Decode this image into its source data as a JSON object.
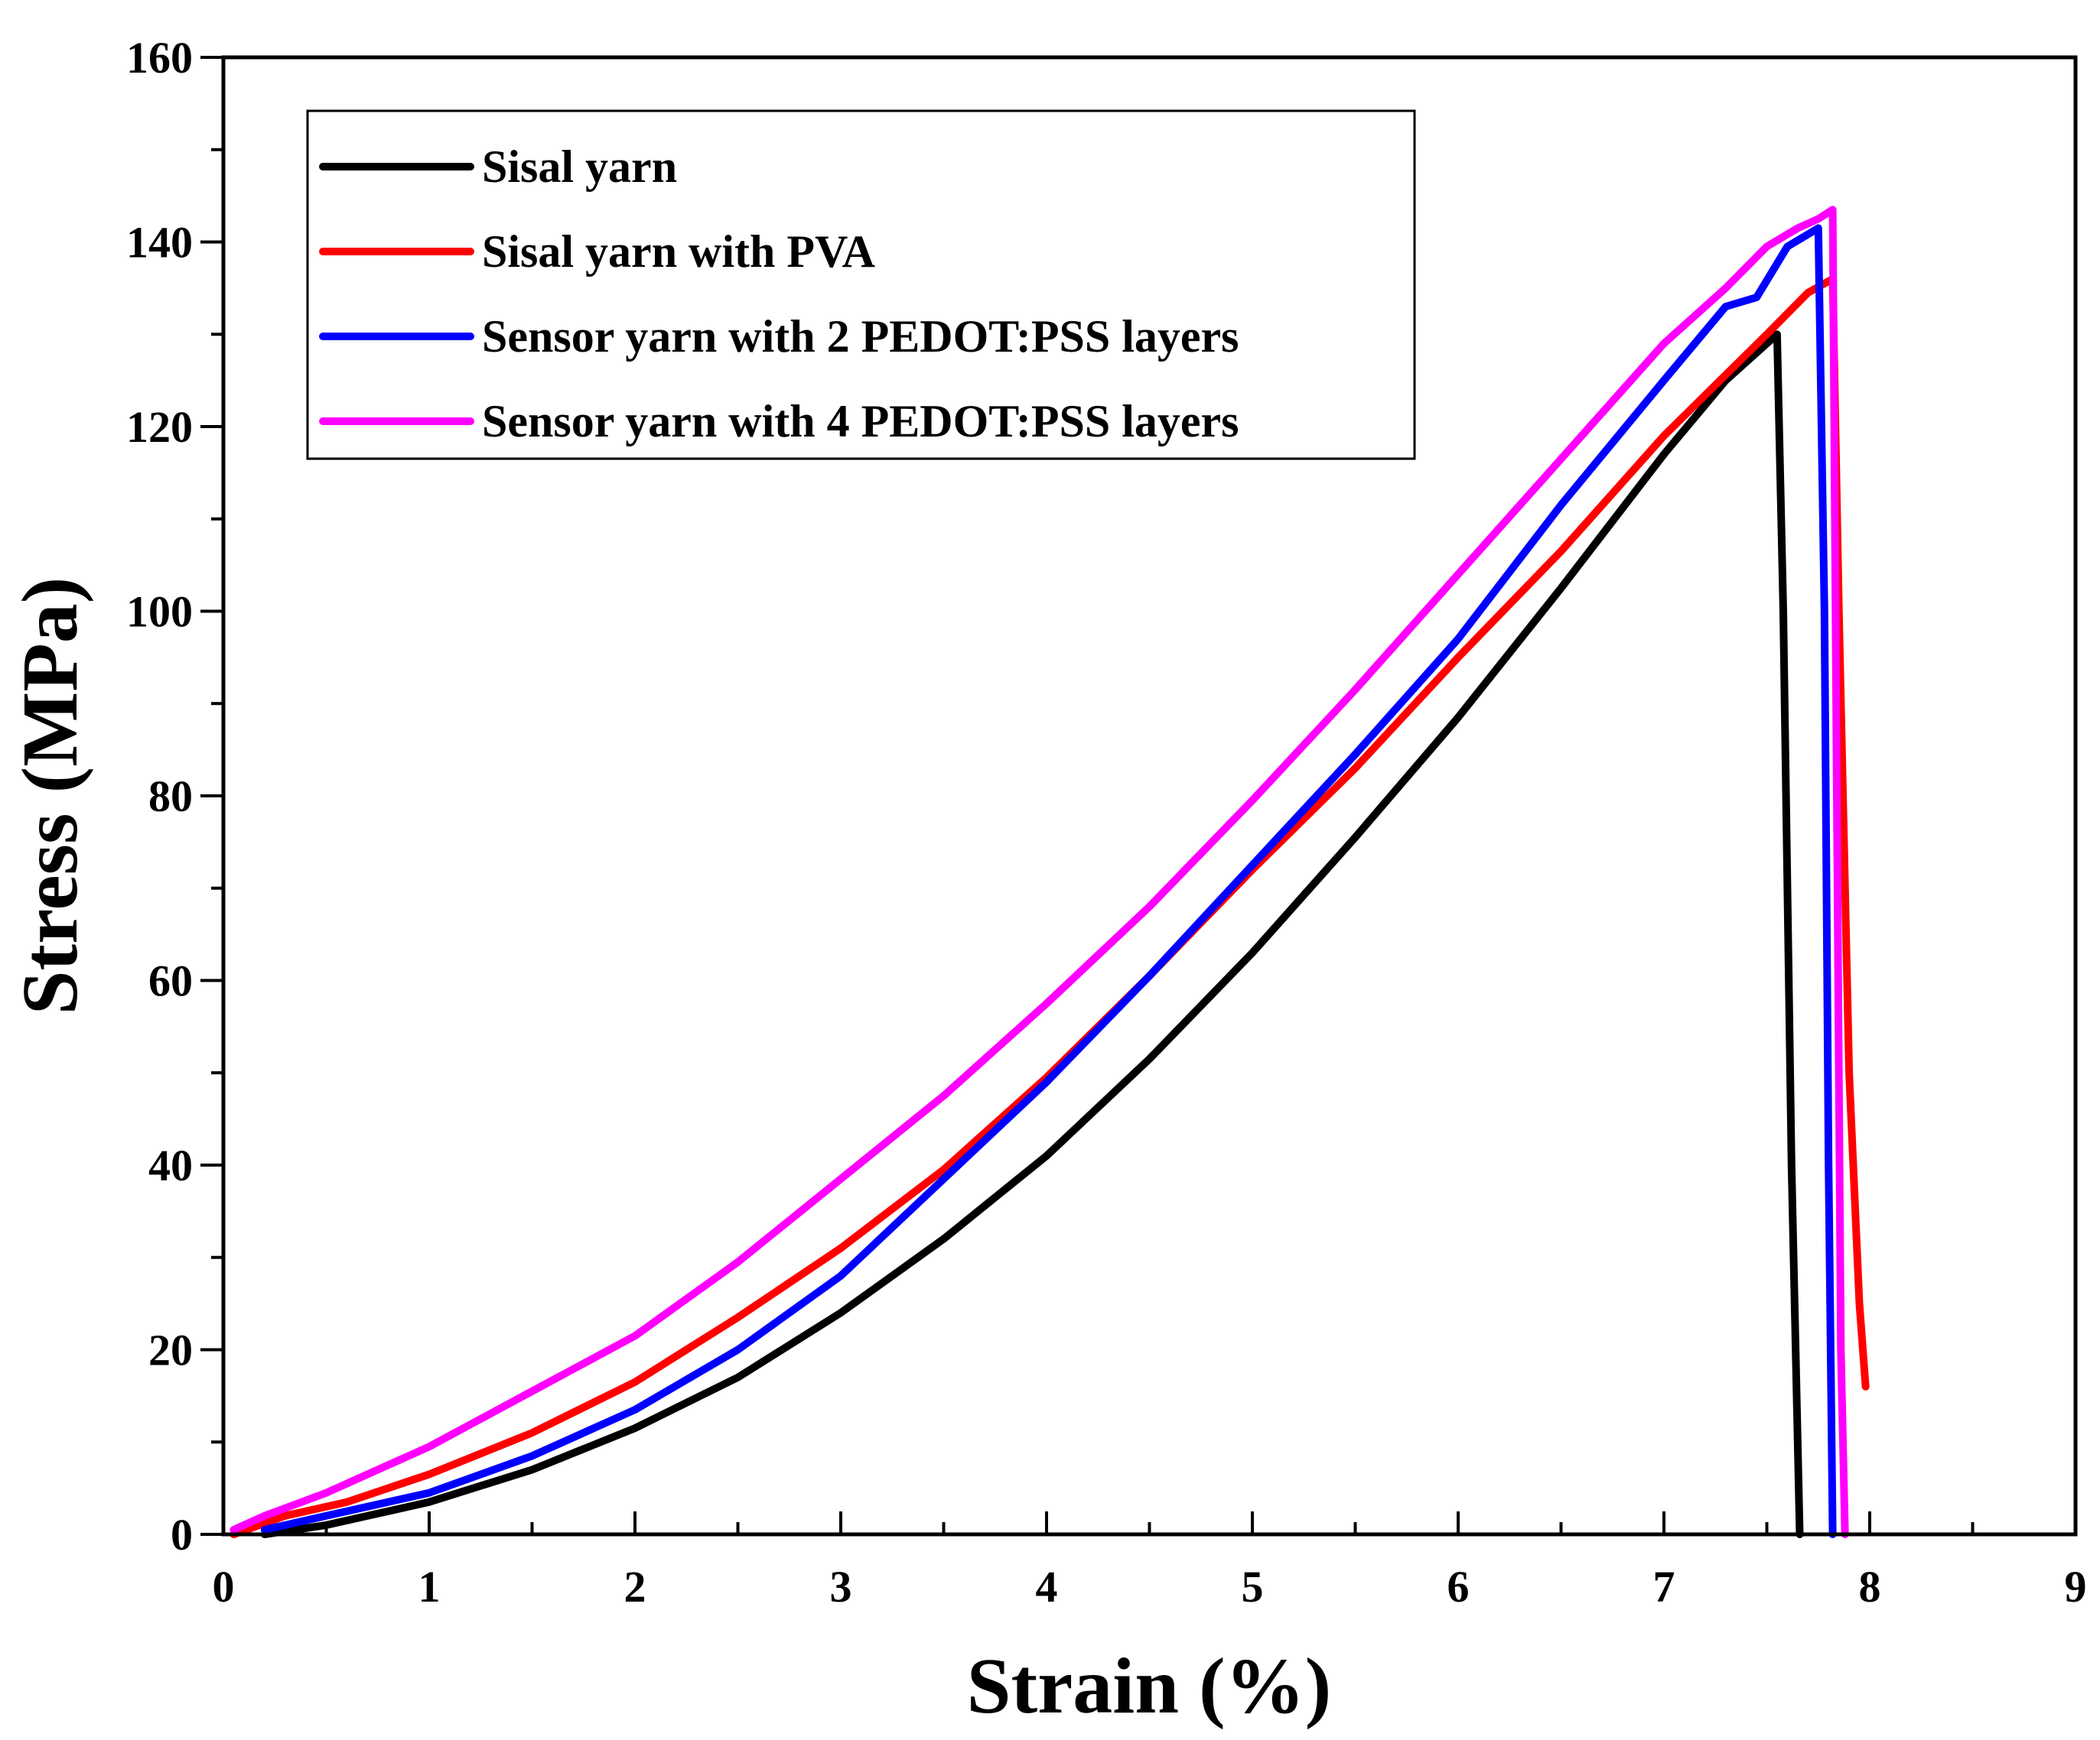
{
  "chart_data": {
    "type": "line",
    "title": "",
    "xlabel": "Strain (%)",
    "ylabel": "Stress (MPa)",
    "xlim": [
      0,
      9
    ],
    "ylim": [
      0,
      160
    ],
    "xticks": [
      0,
      1,
      2,
      3,
      4,
      5,
      6,
      7,
      8,
      9
    ],
    "yticks": [
      0,
      20,
      40,
      60,
      80,
      100,
      120,
      140,
      160
    ],
    "grid": false,
    "legend_position": "top-left",
    "series": [
      {
        "name": "Sisal yarn",
        "color": "#000000",
        "x": [
          0.2,
          0.5,
          1.0,
          1.5,
          2.0,
          2.5,
          3.0,
          3.5,
          4.0,
          4.5,
          5.0,
          5.5,
          6.0,
          6.5,
          7.0,
          7.3,
          7.55,
          7.58,
          7.62,
          7.66
        ],
        "y": [
          0,
          1,
          3.5,
          7,
          11.5,
          17,
          24,
          32,
          41,
          51.5,
          63,
          75.5,
          88.5,
          102.5,
          117,
          125,
          130,
          100,
          40,
          0
        ]
      },
      {
        "name": "Sisal yarn with PVA",
        "color": "#ff0000",
        "x": [
          0.05,
          0.3,
          0.6,
          1.0,
          1.5,
          2.0,
          2.5,
          3.0,
          3.5,
          4.0,
          4.5,
          5.0,
          5.5,
          6.0,
          6.5,
          7.0,
          7.5,
          7.7,
          7.82,
          7.85,
          7.9,
          7.95,
          7.98
        ],
        "y": [
          0,
          2,
          3.5,
          6.5,
          11,
          16.5,
          23.5,
          31,
          39.5,
          49.5,
          60.5,
          72,
          83,
          95,
          106.5,
          119,
          130,
          134.5,
          136,
          100,
          50,
          25,
          16
        ]
      },
      {
        "name": "Sensor yarn with 2 PEDOT:PSS layers",
        "color": "#0000ff",
        "x": [
          0.2,
          0.5,
          1.0,
          1.5,
          2.0,
          2.5,
          3.0,
          3.5,
          4.0,
          4.5,
          5.0,
          5.5,
          6.0,
          6.5,
          7.0,
          7.3,
          7.45,
          7.6,
          7.75,
          7.78,
          7.8,
          7.82
        ],
        "y": [
          0.5,
          2,
          4.5,
          8.5,
          13.5,
          20,
          28,
          38.5,
          49,
          60.5,
          72.5,
          84.5,
          97,
          111.5,
          125,
          133,
          134,
          139.5,
          141.5,
          100,
          40,
          0
        ]
      },
      {
        "name": "Sensor yarn with 4 PEDOT:PSS layers",
        "color": "#ff00ff",
        "x": [
          0.05,
          0.2,
          0.5,
          1.0,
          1.5,
          1.75,
          2.0,
          2.5,
          3.0,
          3.5,
          4.0,
          4.5,
          5.0,
          5.5,
          6.0,
          6.5,
          7.0,
          7.3,
          7.5,
          7.65,
          7.75,
          7.82,
          7.84,
          7.86,
          7.88
        ],
        "y": [
          0.5,
          2,
          4.5,
          9.5,
          15.5,
          18.5,
          21.5,
          29.5,
          38.5,
          47.5,
          57.5,
          68,
          79.5,
          91.5,
          104,
          116.5,
          129,
          135,
          139.5,
          141.5,
          142.5,
          143.5,
          80,
          20,
          0
        ]
      }
    ]
  }
}
